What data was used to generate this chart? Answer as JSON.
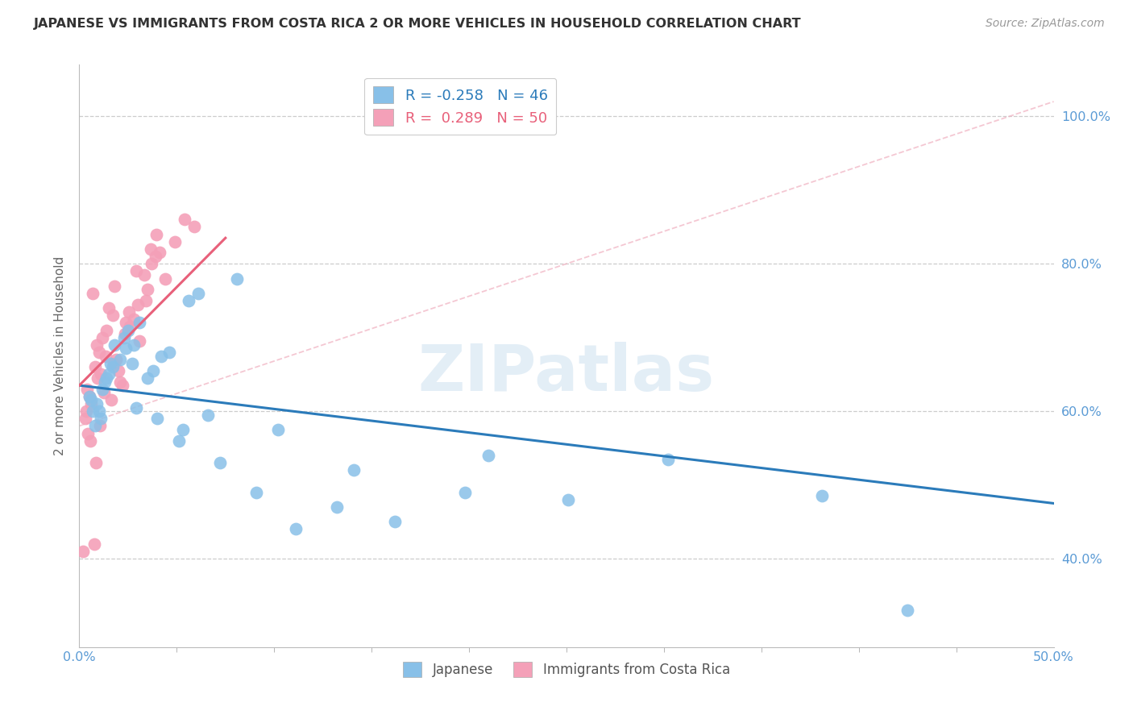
{
  "title": "JAPANESE VS IMMIGRANTS FROM COSTA RICA 2 OR MORE VEHICLES IN HOUSEHOLD CORRELATION CHART",
  "source": "Source: ZipAtlas.com",
  "ylabel": "2 or more Vehicles in Household",
  "xlim": [
    0.0,
    50.0
  ],
  "ylim": [
    28.0,
    107.0
  ],
  "ytick_values": [
    40.0,
    60.0,
    80.0,
    100.0
  ],
  "ytick_labels": [
    "40.0%",
    "60.0%",
    "80.0%",
    "100.0%"
  ],
  "xtick_values": [
    0.0,
    50.0
  ],
  "xtick_labels": [
    "0.0%",
    "50.0%"
  ],
  "legend1_r": "R = -0.258",
  "legend1_n": "N = 46",
  "legend2_r": "R =  0.289",
  "legend2_n": "N = 50",
  "legend_bottom1": "Japanese",
  "legend_bottom2": "Immigrants from Costa Rica",
  "japanese_color": "#88c0e8",
  "costa_rica_color": "#f4a0b8",
  "japanese_line_color": "#2b7bba",
  "costa_rica_line_color": "#e8607a",
  "diagonal_color": "#f0b0c0",
  "watermark": "ZIPatlas",
  "jp_line_x0": 0.0,
  "jp_line_y0": 63.5,
  "jp_line_x1": 50.0,
  "jp_line_y1": 47.5,
  "cr_line_x0": 0.0,
  "cr_line_y0": 63.5,
  "cr_line_x1": 7.5,
  "cr_line_y1": 83.5,
  "diag_x0": 0.0,
  "diag_y0": 58.0,
  "diag_x1": 50.0,
  "diag_y1": 102.0,
  "japanese_x": [
    1.2,
    1.5,
    0.9,
    1.1,
    2.1,
    1.8,
    1.3,
    0.5,
    0.8,
    1.0,
    2.5,
    3.1,
    2.3,
    1.7,
    4.6,
    6.1,
    5.6,
    8.1,
    3.8,
    2.7,
    2.9,
    3.5,
    4.2,
    5.3,
    6.6,
    7.2,
    9.1,
    10.2,
    11.1,
    13.2,
    14.1,
    16.2,
    19.8,
    25.1,
    30.2,
    38.1,
    42.5,
    1.4,
    0.7,
    0.6,
    1.6,
    2.4,
    2.8,
    4.0,
    5.1,
    21.0
  ],
  "japanese_y": [
    63.0,
    65.0,
    61.0,
    59.0,
    67.0,
    69.0,
    64.0,
    62.0,
    58.0,
    60.0,
    71.0,
    72.0,
    70.0,
    66.0,
    68.0,
    76.0,
    75.0,
    78.0,
    65.5,
    66.5,
    60.5,
    64.5,
    67.5,
    57.5,
    59.5,
    53.0,
    49.0,
    57.5,
    44.0,
    47.0,
    52.0,
    45.0,
    49.0,
    48.0,
    53.5,
    48.5,
    33.0,
    64.5,
    60.0,
    61.5,
    66.5,
    68.5,
    69.0,
    59.0,
    56.0,
    54.0
  ],
  "costa_rica_x": [
    0.4,
    0.6,
    0.7,
    0.9,
    1.1,
    1.4,
    1.7,
    1.9,
    2.1,
    2.4,
    2.9,
    3.4,
    3.9,
    4.9,
    5.9,
    0.3,
    0.5,
    0.8,
    1.0,
    1.2,
    1.5,
    1.8,
    2.2,
    2.6,
    3.1,
    3.7,
    4.4,
    0.35,
    0.2,
    0.75,
    0.95,
    1.35,
    2.0,
    2.8,
    3.5,
    4.1,
    0.55,
    1.05,
    1.65,
    2.35,
    3.0,
    3.65,
    0.45,
    0.85,
    1.25,
    1.75,
    2.55,
    3.35,
    3.95,
    5.4
  ],
  "costa_rica_y": [
    63.0,
    61.0,
    76.0,
    69.0,
    65.0,
    71.0,
    73.0,
    67.0,
    64.0,
    72.0,
    79.0,
    75.0,
    81.0,
    83.0,
    85.0,
    59.0,
    62.0,
    66.0,
    68.0,
    70.0,
    74.0,
    77.0,
    63.5,
    71.5,
    69.5,
    80.0,
    78.0,
    60.0,
    41.0,
    42.0,
    64.5,
    67.5,
    65.5,
    72.5,
    76.5,
    81.5,
    56.0,
    58.0,
    61.5,
    70.5,
    74.5,
    82.0,
    57.0,
    53.0,
    62.5,
    66.5,
    73.5,
    78.5,
    84.0,
    86.0
  ]
}
